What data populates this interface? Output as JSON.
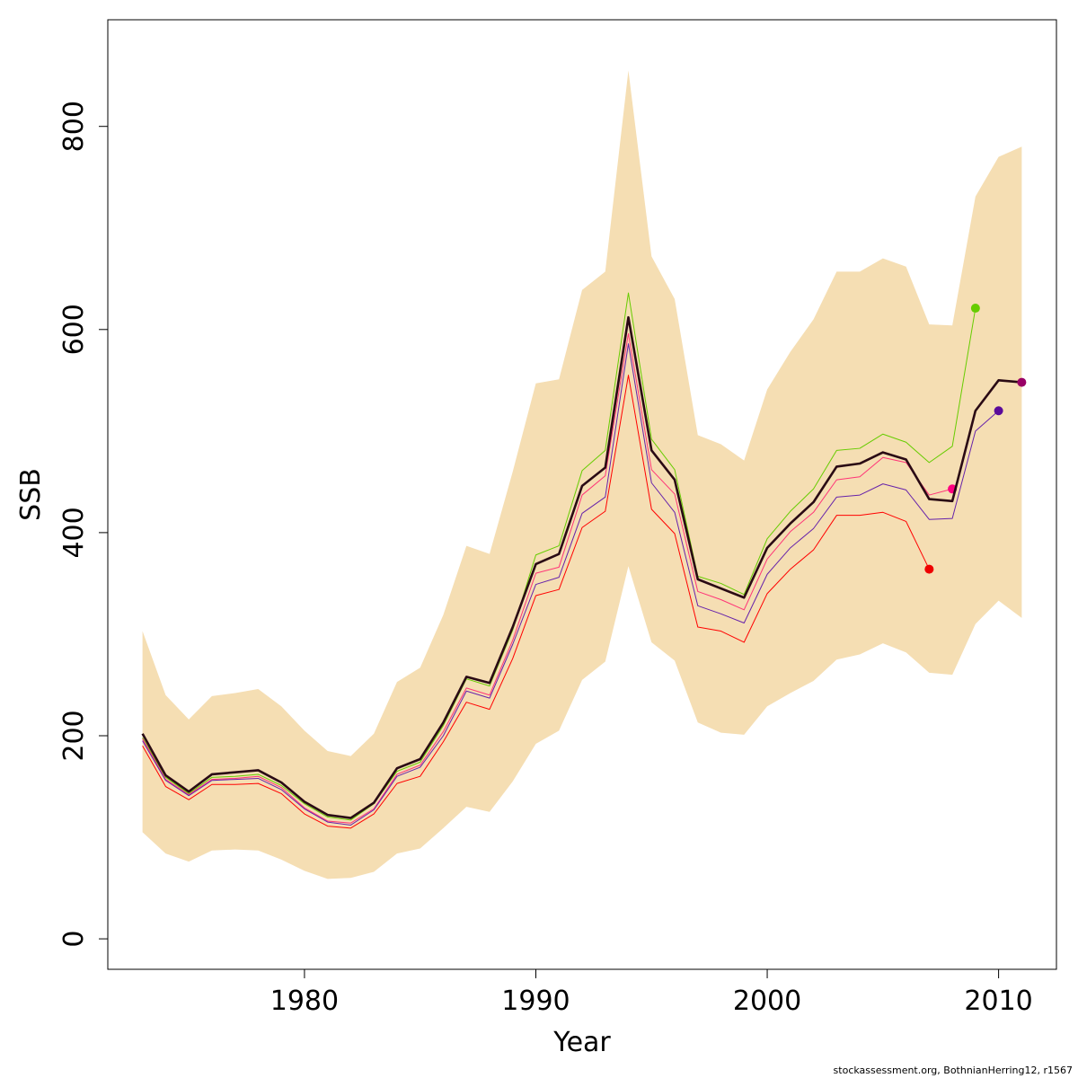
{
  "chart_data": {
    "type": "line",
    "title": "",
    "xlabel": "Year",
    "ylabel": "SSB",
    "xlim": [
      1971.5,
      2012.5
    ],
    "ylim": [
      -30,
      905
    ],
    "xticks": [
      1980,
      1990,
      2000,
      2010
    ],
    "xtick_labels": [
      "1980",
      "1990",
      "2000",
      "2010"
    ],
    "yticks": [
      0,
      200,
      400,
      600,
      800
    ],
    "ytick_labels": [
      "0",
      "200",
      "400",
      "600",
      "800"
    ],
    "band": {
      "name": "confidence-band",
      "color": "#F5DEB3",
      "x": [
        1973,
        1974,
        1975,
        1976,
        1977,
        1978,
        1979,
        1980,
        1981,
        1982,
        1983,
        1984,
        1985,
        1986,
        1987,
        1988,
        1989,
        1990,
        1991,
        1992,
        1993,
        1994,
        1995,
        1996,
        1997,
        1998,
        1999,
        2000,
        2001,
        2002,
        2003,
        2004,
        2005,
        2006,
        2007,
        2008,
        2009,
        2010,
        2011
      ],
      "upper": [
        303,
        240,
        216,
        239,
        242,
        246,
        229,
        205,
        185,
        180,
        202,
        253,
        267,
        319,
        387,
        379,
        460,
        547,
        551,
        639,
        657,
        855,
        672,
        630,
        496,
        487,
        471,
        541,
        578,
        610,
        657,
        657,
        670,
        662,
        605,
        604,
        731,
        770,
        780
      ],
      "lower": [
        105,
        84,
        76,
        87,
        88,
        87,
        78,
        67,
        59,
        60,
        66,
        84,
        89,
        109,
        130,
        125,
        155,
        192,
        205,
        255,
        273,
        367,
        292,
        274,
        213,
        203,
        201,
        229,
        242,
        254,
        275,
        280,
        291,
        282,
        262,
        260,
        310,
        333,
        316
      ]
    },
    "series": [
      {
        "name": "green-retro",
        "color": "#66CC00",
        "width": 1,
        "x": [
          1973,
          1974,
          1975,
          1976,
          1977,
          1978,
          1979,
          1980,
          1981,
          1982,
          1983,
          1984,
          1985,
          1986,
          1987,
          1988,
          1989,
          1990,
          1991,
          1992,
          1993,
          1994,
          1995,
          1996,
          1997,
          1998,
          1999,
          2000,
          2001,
          2002,
          2003,
          2004,
          2005,
          2006,
          2007,
          2008,
          2009
        ],
        "values": [
          198,
          159,
          143,
          159,
          160,
          162,
          151,
          133,
          120,
          117,
          133,
          165,
          174,
          210,
          256,
          249,
          304,
          378,
          387,
          461,
          481,
          636,
          492,
          462,
          357,
          350,
          339,
          394,
          421,
          443,
          481,
          483,
          497,
          489,
          469,
          485,
          621
        ],
        "endpoint": true
      },
      {
        "name": "pink-retro",
        "color": "#FF3377",
        "width": 1,
        "x": [
          1973,
          1974,
          1975,
          1976,
          1977,
          1978,
          1979,
          1980,
          1981,
          1982,
          1983,
          1984,
          1985,
          1986,
          1987,
          1988,
          1989,
          1990,
          1991,
          1992,
          1993,
          1994,
          1995,
          1996,
          1997,
          1998,
          1999,
          2000,
          2001,
          2002,
          2003,
          2004,
          2005,
          2006,
          2007,
          2008
        ],
        "values": [
          197,
          157,
          142,
          157,
          158,
          160,
          149,
          129,
          116,
          114,
          128,
          162,
          171,
          204,
          247,
          240,
          294,
          360,
          366,
          437,
          456,
          596,
          462,
          438,
          342,
          334,
          324,
          374,
          401,
          420,
          452,
          455,
          474,
          469,
          437,
          443
        ],
        "endpoint": true,
        "endpoint_color": "#FF0080"
      },
      {
        "name": "purple-retro",
        "color": "#6622AA",
        "width": 1,
        "x": [
          1973,
          1974,
          1975,
          1976,
          1977,
          1978,
          1979,
          1980,
          1981,
          1982,
          1983,
          1984,
          1985,
          1986,
          1987,
          1988,
          1989,
          1990,
          1991,
          1992,
          1993,
          1994,
          1995,
          1996,
          1997,
          1998,
          1999,
          2000,
          2001,
          2002,
          2003,
          2004,
          2005,
          2006,
          2007,
          2008,
          2009,
          2010
        ],
        "values": [
          195,
          156,
          141,
          156,
          157,
          158,
          147,
          128,
          115,
          112,
          127,
          160,
          169,
          200,
          244,
          237,
          290,
          349,
          356,
          419,
          435,
          586,
          449,
          420,
          328,
          320,
          311,
          359,
          385,
          404,
          435,
          437,
          448,
          442,
          413,
          414,
          500,
          520
        ],
        "endpoint": true,
        "endpoint_color": "#5A0A9A"
      },
      {
        "name": "red-retro",
        "color": "#FF0000",
        "width": 1,
        "x": [
          1973,
          1974,
          1975,
          1976,
          1977,
          1978,
          1979,
          1980,
          1981,
          1982,
          1983,
          1984,
          1985,
          1986,
          1987,
          1988,
          1989,
          1990,
          1991,
          1992,
          1993,
          1994,
          1995,
          1996,
          1997,
          1998,
          1999,
          2000,
          2001,
          2002,
          2003,
          2004,
          2005,
          2006,
          2007
        ],
        "values": [
          190,
          150,
          137,
          152,
          152,
          153,
          143,
          123,
          111,
          109,
          123,
          153,
          160,
          194,
          233,
          226,
          276,
          338,
          344,
          405,
          421,
          555,
          423,
          399,
          307,
          303,
          292,
          340,
          364,
          383,
          417,
          417,
          420,
          411,
          364
        ],
        "endpoint": true,
        "endpoint_color": "#EE0000"
      },
      {
        "name": "current-assessment",
        "color": "#2A0A14",
        "width": 2.6,
        "x": [
          1973,
          1974,
          1975,
          1976,
          1977,
          1978,
          1979,
          1980,
          1981,
          1982,
          1983,
          1984,
          1985,
          1986,
          1987,
          1988,
          1989,
          1990,
          1991,
          1992,
          1993,
          1994,
          1995,
          1996,
          1997,
          1998,
          1999,
          2000,
          2001,
          2002,
          2003,
          2004,
          2005,
          2006,
          2007,
          2008,
          2009,
          2010,
          2011
        ],
        "values": [
          202,
          161,
          145,
          162,
          164,
          166,
          154,
          135,
          122,
          119,
          134,
          168,
          177,
          213,
          258,
          252,
          307,
          369,
          379,
          446,
          464,
          612,
          481,
          452,
          354,
          345,
          336,
          385,
          409,
          430,
          465,
          468,
          479,
          472,
          433,
          431,
          520,
          550,
          548
        ],
        "endpoint": true,
        "endpoint_color": "#990066"
      }
    ]
  },
  "credit": "stockassessment.org, BothnianHerring12, r1567"
}
